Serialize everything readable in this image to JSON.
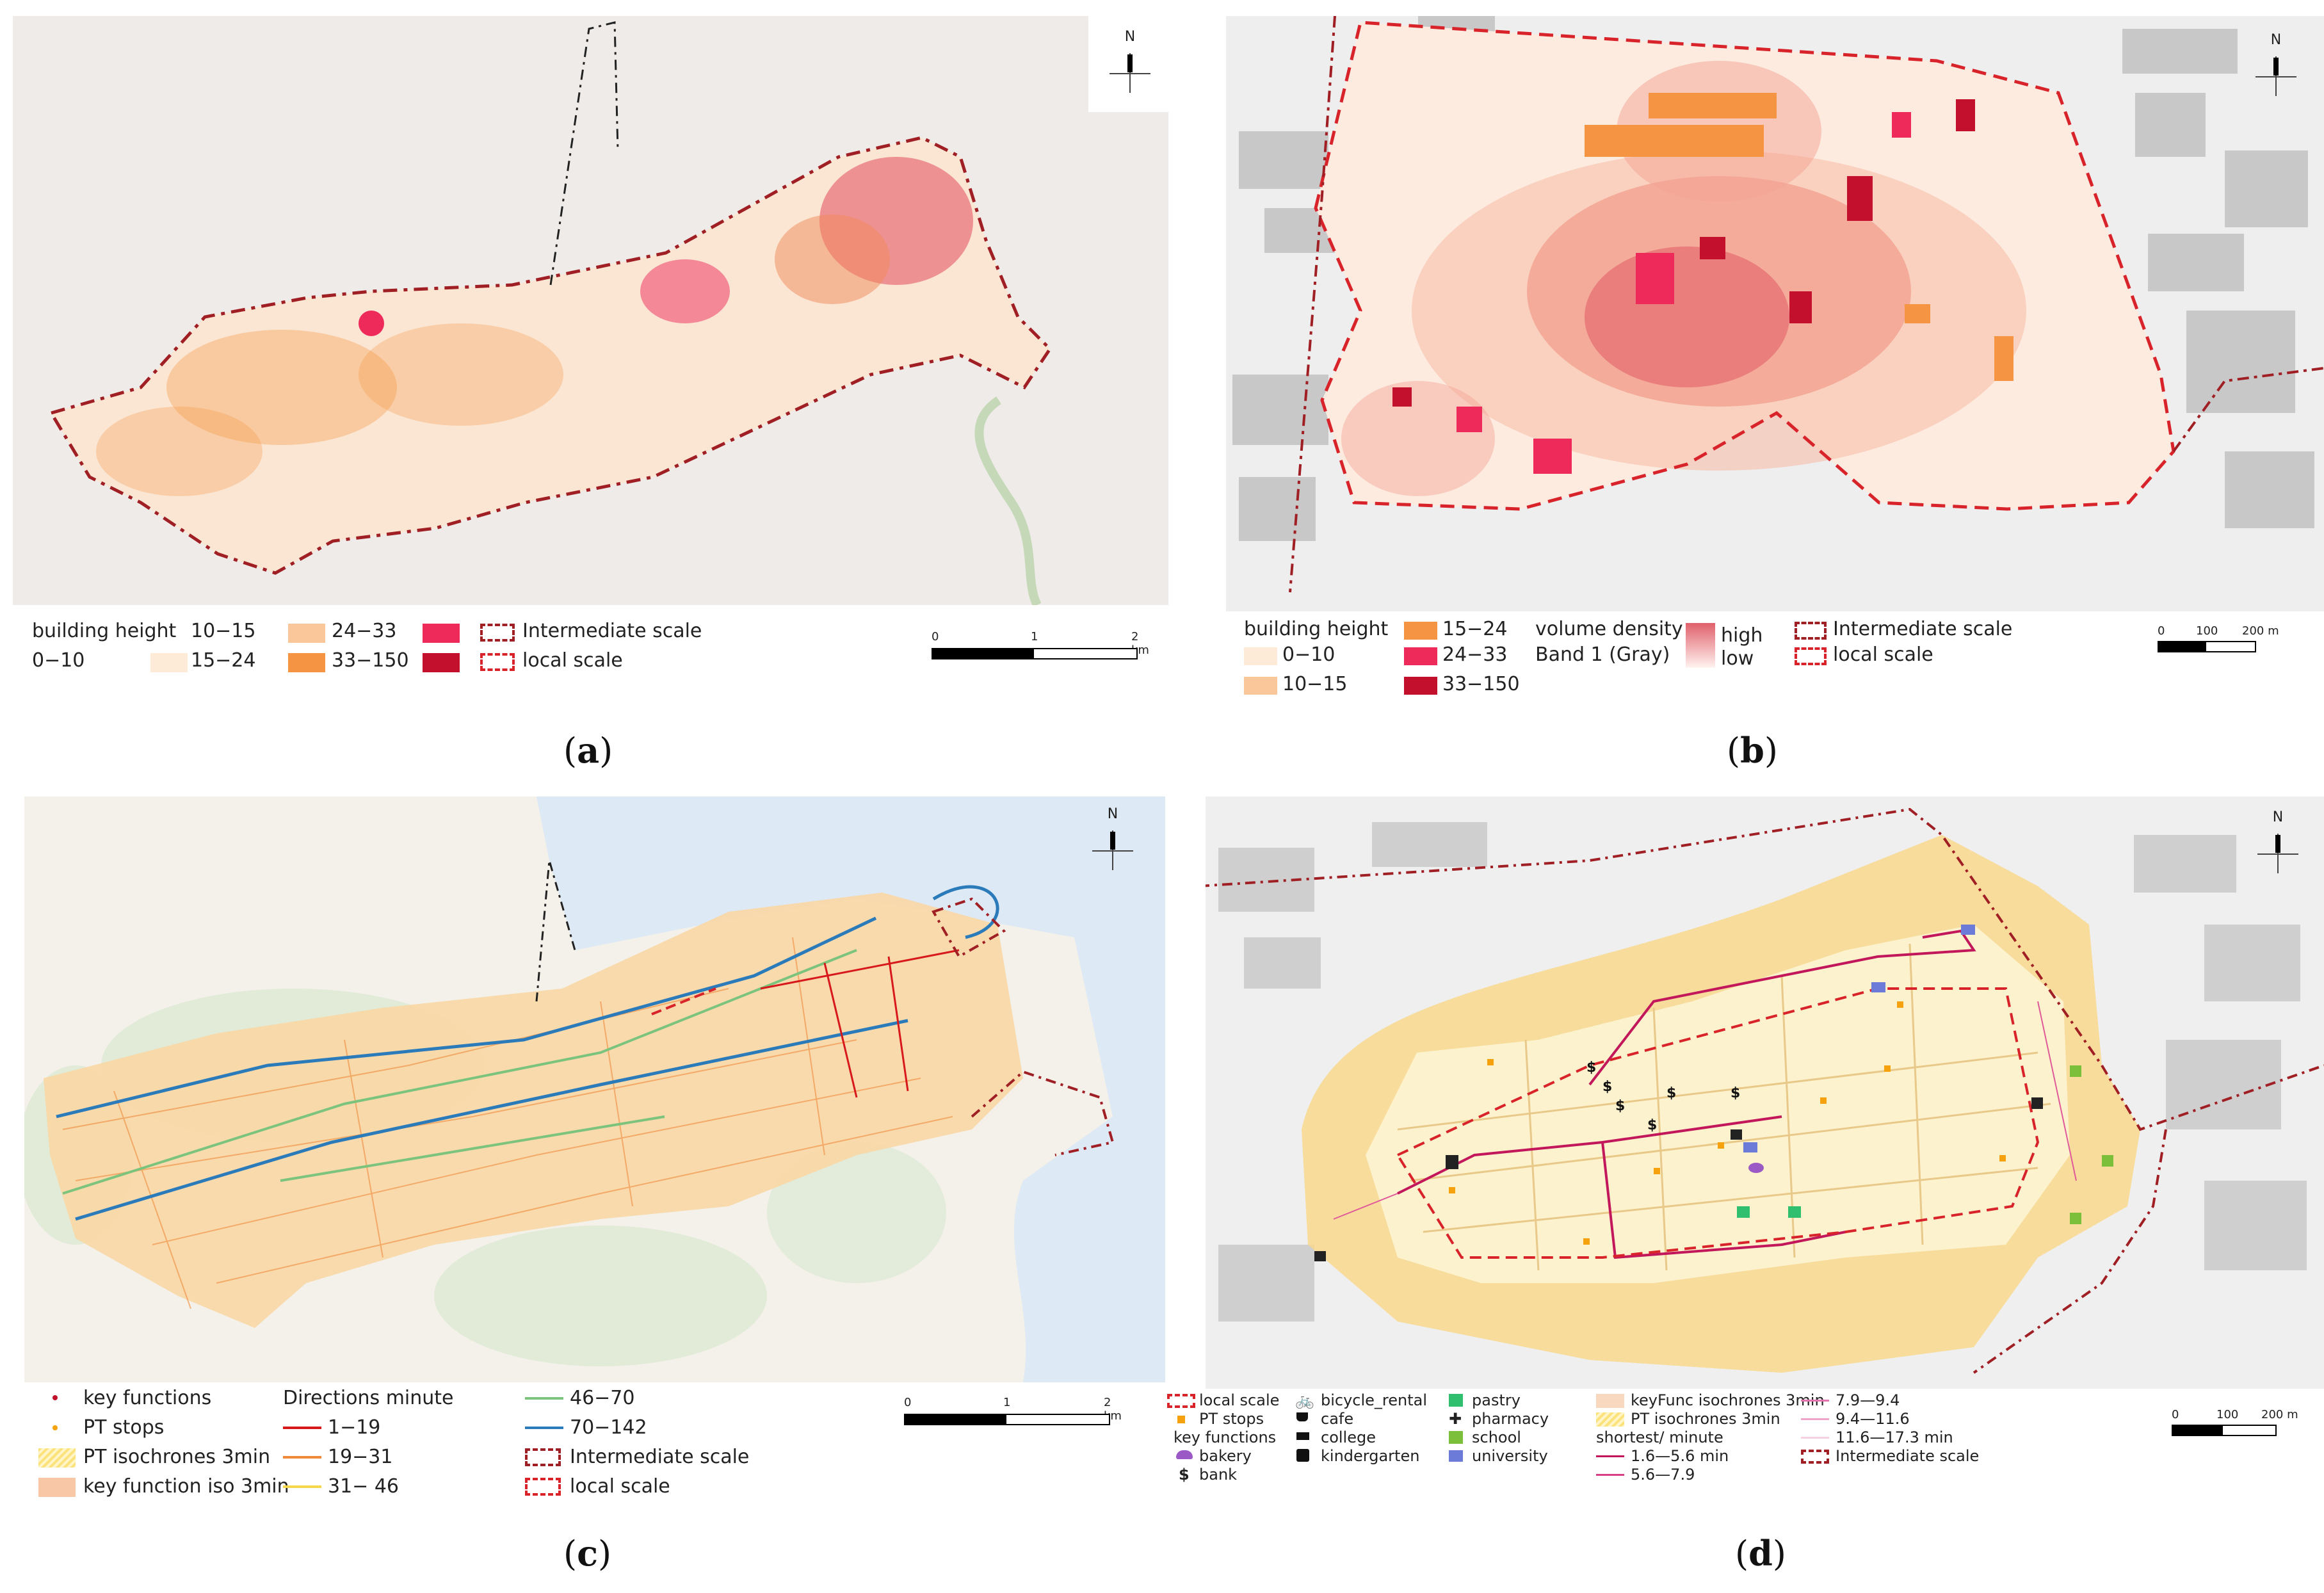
{
  "panels": {
    "a": {
      "caption": "a",
      "north_label": "N",
      "legend": {
        "title": "building height",
        "items": [
          "0−10",
          "10−15",
          "15−24",
          "24−33",
          "33−150"
        ],
        "scales": [
          "Intermediate scale",
          "local scale"
        ]
      },
      "scalebar": {
        "ticks": [
          "0",
          "1",
          "2 km"
        ]
      }
    },
    "b": {
      "caption": "b",
      "north_label": "N",
      "legend": {
        "title": "building height",
        "items": [
          "0−10",
          "10−15",
          "15−24",
          "24−33",
          "33−150"
        ],
        "density_title": "volume density",
        "density_band": "Band 1 (Gray)",
        "density_high": "high",
        "density_low": "low",
        "scales": [
          "Intermediate scale",
          "local scale"
        ]
      },
      "scalebar": {
        "ticks": [
          "0",
          "100",
          "200 m"
        ]
      }
    },
    "c": {
      "caption": "c",
      "north_label": "N",
      "legend": {
        "key_functions": "key functions",
        "pt_stops": "PT stops",
        "pt_iso": "PT isochrones 3min",
        "kf_iso": "key function iso 3min",
        "directions_title": "Directions minute",
        "directions": [
          "1−19",
          "19−31",
          "31− 46",
          "46−70",
          "70−142"
        ],
        "scales": [
          "Intermediate scale",
          "local scale"
        ]
      },
      "scalebar": {
        "ticks": [
          "0",
          "1",
          "2 km"
        ]
      }
    },
    "d": {
      "caption": "d",
      "north_label": "N",
      "legend": {
        "local_scale": "local scale",
        "pt_stops": "PT stops",
        "key_functions": "key functions",
        "functions_col1": [
          "bakery",
          "bank"
        ],
        "functions_col2": [
          "bicycle_rental",
          "cafe",
          "college",
          "kindergarten"
        ],
        "functions_col3": [
          "pastry",
          "pharmacy",
          "school",
          "university"
        ],
        "kf_iso": "keyFunc isochrones 3min",
        "pt_iso": "PT isochrones 3min",
        "shortest_title": "shortest/ minute",
        "shortest": [
          "1.6—5.6 min",
          "5.6—7.9",
          "7.9—9.4",
          "9.4—11.6",
          "11.6—17.3 min"
        ],
        "intermediate_scale": "Intermediate scale"
      },
      "scalebar": {
        "ticks": [
          "0",
          "100",
          "200 m"
        ]
      }
    }
  },
  "colors": {
    "h0": "#fdebd8",
    "h1": "#f9c79a",
    "h2": "#f59443",
    "h3": "#ee2a5b",
    "h4": "#c3112d",
    "boundary": "#a01f24",
    "local": "#d8232a",
    "d1": "#d7191c",
    "d2": "#f08a3a",
    "d3": "#f4d84a",
    "d4": "#7cc47e",
    "d5": "#2b7bba",
    "iso_yellow": "#fbe27a",
    "iso_orange": "#f8c8a6",
    "water": "#dde9f4"
  }
}
